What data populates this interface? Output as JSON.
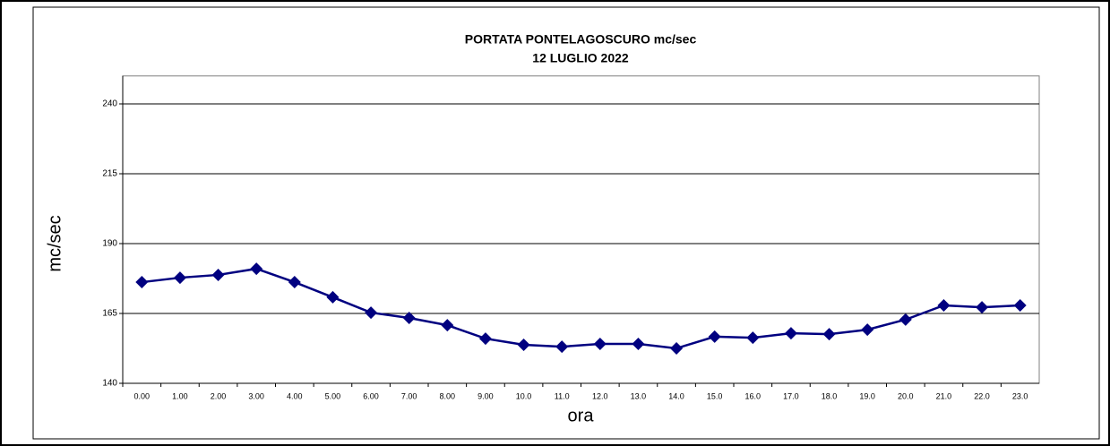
{
  "chart_data": {
    "type": "line",
    "title": "PORTATA PONTELAGOSCURO mc/sec",
    "subtitle": "12 LUGLIO 2022",
    "x_label": "ora",
    "y_label": "mc/sec",
    "categories": [
      "0.00",
      "1.00",
      "2.00",
      "3.00",
      "4.00",
      "5.00",
      "6.00",
      "7.00",
      "8.00",
      "9.00",
      "10.0",
      "11.0",
      "12.0",
      "13.0",
      "14.0",
      "15.0",
      "16.0",
      "17.0",
      "18.0",
      "19.0",
      "20.0",
      "21.0",
      "22.0",
      "23.0"
    ],
    "values": [
      176.2,
      177.8,
      178.8,
      181.0,
      176.2,
      170.8,
      165.3,
      163.4,
      160.8,
      156.0,
      153.8,
      153.1,
      154.1,
      154.1,
      152.5,
      156.7,
      156.3,
      157.9,
      157.6,
      159.2,
      162.8,
      167.9,
      167.2,
      167.9
    ],
    "color": "#000080",
    "ylim": [
      140,
      250
    ],
    "yticks": [
      140,
      165,
      190,
      215,
      240
    ],
    "grid": true
  }
}
